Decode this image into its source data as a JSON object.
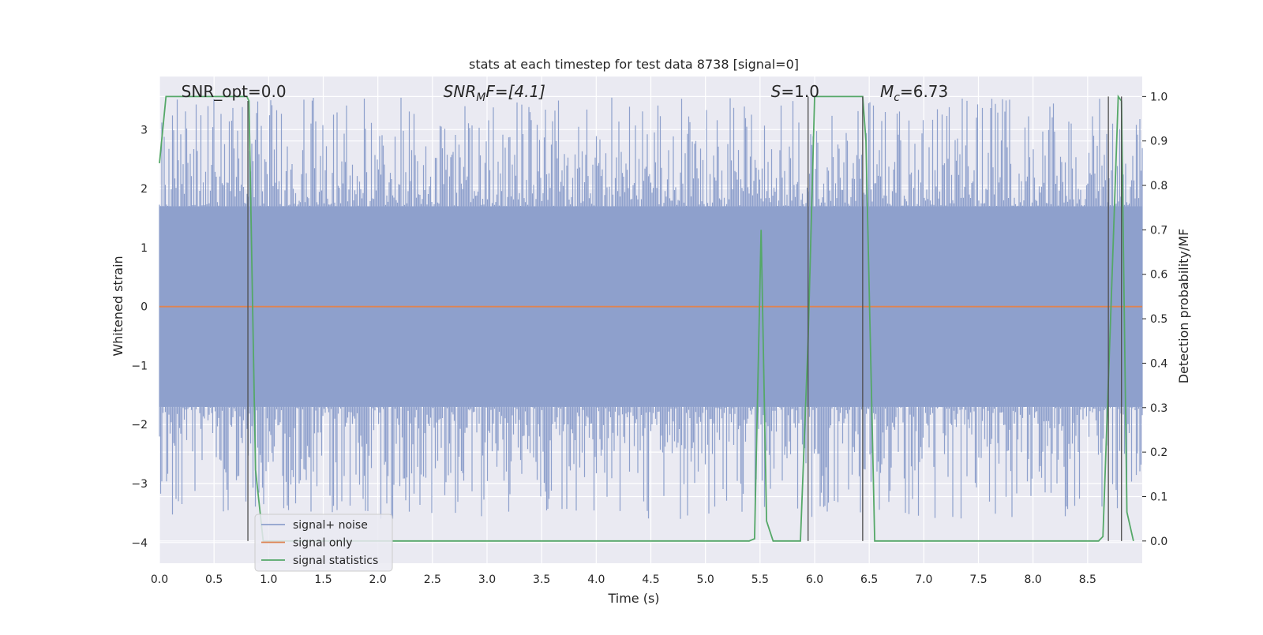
{
  "chart_data": {
    "type": "line",
    "title": "stats at each timestep for test data 8738 [signal=0]",
    "xlabel": "Time (s)",
    "ylabel": "Whitened strain",
    "ylabel_right": "Detection probability/MF",
    "xlim": [
      0.0,
      9.0
    ],
    "ylim": [
      -4.35,
      3.9
    ],
    "ylim_right": [
      -0.05,
      1.045
    ],
    "x_ticks": [
      0.0,
      0.5,
      1.0,
      1.5,
      2.0,
      2.5,
      3.0,
      3.5,
      4.0,
      4.5,
      5.0,
      5.5,
      6.0,
      6.5,
      7.0,
      7.5,
      8.0,
      8.5
    ],
    "x_tick_labels": [
      "0.0",
      "0.5",
      "1.0",
      "1.5",
      "2.0",
      "2.5",
      "3.0",
      "3.5",
      "4.0",
      "4.5",
      "5.0",
      "5.5",
      "6.0",
      "6.5",
      "7.0",
      "7.5",
      "8.0",
      "8.5"
    ],
    "y_ticks": [
      -4,
      -3,
      -2,
      -1,
      0,
      1,
      2,
      3
    ],
    "y_tick_labels": [
      "−4",
      "−3",
      "−2",
      "−1",
      "0",
      "1",
      "2",
      "3"
    ],
    "y_right_ticks": [
      0.0,
      0.1,
      0.2,
      0.3,
      0.4,
      0.5,
      0.6,
      0.7,
      0.8,
      0.9,
      1.0
    ],
    "y_right_tick_labels": [
      "0.0",
      "0.1",
      "0.2",
      "0.3",
      "0.4",
      "0.5",
      "0.6",
      "0.7",
      "0.8",
      "0.9",
      "1.0"
    ],
    "grid": true,
    "legend_position": "lower-left",
    "annotations": [
      {
        "text": "SNR_opt=0.0",
        "x": 0.2
      },
      {
        "text": "SNR_MF=[4.1]",
        "main": "SNR",
        "sub": "M",
        "suffix": "F=[4.1]",
        "x": 2.6
      },
      {
        "text": "S=1.0",
        "main": "S",
        "suffix": "=1.0",
        "x": 5.6
      },
      {
        "text": "M_c=6.73",
        "main": "M",
        "sub": "c",
        "suffix": "=6.73",
        "x": 6.6
      }
    ],
    "series": [
      {
        "name": "signal+ noise",
        "color": "#8ea0cc",
        "kind": "noise",
        "x_range": [
          0.0,
          9.0
        ],
        "envelope_y": [
          -1.7,
          1.7
        ],
        "spike_y_range": [
          -3.6,
          3.55
        ]
      },
      {
        "name": "signal only",
        "color": "#dd8452",
        "x": [
          0.0,
          9.0
        ],
        "y": [
          0.0,
          0.0
        ]
      },
      {
        "name": "signal statistics",
        "color": "#55a868",
        "axis": "right",
        "x": [
          0.0,
          0.06,
          0.1,
          0.8,
          0.82,
          0.88,
          0.95,
          1.02,
          5.4,
          5.45,
          5.51,
          5.56,
          5.62,
          5.87,
          5.94,
          6.0,
          6.44,
          6.47,
          6.55,
          8.6,
          8.64,
          8.72,
          8.78,
          8.81,
          8.86,
          8.92
        ],
        "y": [
          0.85,
          1.0,
          1.0,
          1.0,
          0.99,
          0.16,
          0.0,
          0.0,
          0.0,
          0.005,
          0.7,
          0.045,
          0.0,
          0.0,
          0.45,
          1.0,
          1.0,
          0.9,
          0.0,
          0.0,
          0.01,
          0.57,
          1.0,
          0.99,
          0.065,
          0.0
        ]
      }
    ],
    "vertical_markers": [
      {
        "x": 0.81,
        "axis": "right",
        "y_top": 0.99
      },
      {
        "x": 5.94,
        "axis": "right",
        "y_top": 1.0
      },
      {
        "x": 6.44,
        "axis": "right",
        "y_top": 1.0
      },
      {
        "x": 8.69,
        "axis": "right",
        "y_top": 1.0
      },
      {
        "x": 8.81,
        "axis": "right",
        "y_top": 1.0
      }
    ],
    "colors": {
      "background": "#eaeaf2",
      "grid": "#ffffff",
      "marker": "#4d4d4d"
    }
  }
}
